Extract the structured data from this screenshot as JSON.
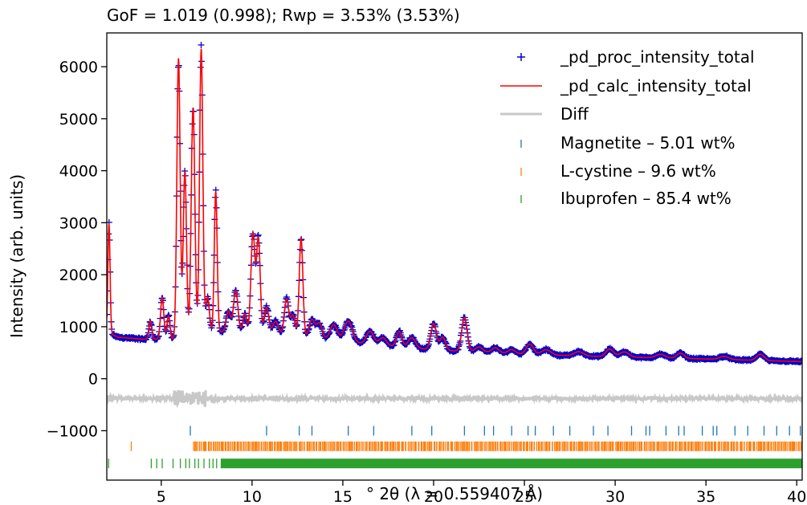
{
  "chart_data": {
    "type": "line",
    "title": "GoF = 1.019 (0.998); Rwp = 3.53% (3.53%)",
    "xlabel": "° 2θ (λ = 0.559407 Å)",
    "ylabel": "Intensity (arb. units)",
    "xlim": [
      2.0,
      40.3
    ],
    "ylim": [
      -1950,
      6650
    ],
    "xticks": [
      5,
      10,
      15,
      20,
      25,
      30,
      35,
      40
    ],
    "yticks": [
      -1000,
      0,
      1000,
      2000,
      3000,
      4000,
      5000,
      6000
    ],
    "ytick_labels": [
      "−1000",
      "0",
      "1000",
      "2000",
      "3000",
      "4000",
      "5000",
      "6000"
    ],
    "grid": false,
    "legend_position": "top-right",
    "colors": {
      "observed": "#0000cc",
      "calculated": "#ff0000",
      "difference": "#c8c8c8",
      "magnetite": "#1f77b4",
      "lcystine": "#ff7f0e",
      "ibuprofen": "#2ca02c"
    },
    "series": [
      {
        "name": "_pd_proc_intensity_total",
        "kind": "observed",
        "background": [
          [
            2.0,
            900
          ],
          [
            2.6,
            800
          ],
          [
            4.0,
            760
          ],
          [
            6.0,
            760
          ],
          [
            8.0,
            900
          ],
          [
            10.0,
            900
          ],
          [
            12.0,
            830
          ],
          [
            14.0,
            760
          ],
          [
            16.0,
            680
          ],
          [
            18.0,
            610
          ],
          [
            20.0,
            560
          ],
          [
            22.0,
            520
          ],
          [
            25.0,
            470
          ],
          [
            30.0,
            420
          ],
          [
            35.0,
            380
          ],
          [
            40.2,
            330
          ]
        ],
        "peaks": [
          [
            2.12,
            2100,
            0.06
          ],
          [
            4.4,
            350,
            0.08
          ],
          [
            5.05,
            800,
            0.09
          ],
          [
            5.4,
            450,
            0.08
          ],
          [
            5.95,
            5400,
            0.09
          ],
          [
            6.3,
            3200,
            0.09
          ],
          [
            6.75,
            4400,
            0.1
          ],
          [
            7.2,
            5500,
            0.09
          ],
          [
            7.55,
            700,
            0.1
          ],
          [
            8.0,
            2700,
            0.08
          ],
          [
            8.7,
            400,
            0.12
          ],
          [
            9.1,
            800,
            0.12
          ],
          [
            9.6,
            350,
            0.1
          ],
          [
            10.05,
            1900,
            0.11
          ],
          [
            10.35,
            1800,
            0.1
          ],
          [
            10.8,
            500,
            0.12
          ],
          [
            11.3,
            250,
            0.15
          ],
          [
            11.9,
            700,
            0.12
          ],
          [
            12.25,
            400,
            0.12
          ],
          [
            12.7,
            1900,
            0.1
          ],
          [
            13.3,
            350,
            0.15
          ],
          [
            13.7,
            300,
            0.15
          ],
          [
            14.5,
            300,
            0.2
          ],
          [
            15.3,
            400,
            0.22
          ],
          [
            16.5,
            250,
            0.2
          ],
          [
            17.2,
            150,
            0.2
          ],
          [
            18.1,
            300,
            0.15
          ],
          [
            18.8,
            200,
            0.2
          ],
          [
            20.0,
            500,
            0.15
          ],
          [
            20.5,
            250,
            0.15
          ],
          [
            21.7,
            650,
            0.15
          ],
          [
            22.5,
            100,
            0.2
          ],
          [
            23.4,
            100,
            0.2
          ],
          [
            24.3,
            80,
            0.2
          ],
          [
            25.3,
            200,
            0.2
          ],
          [
            26.2,
            100,
            0.25
          ],
          [
            28.0,
            80,
            0.25
          ],
          [
            29.7,
            150,
            0.2
          ],
          [
            30.5,
            100,
            0.25
          ],
          [
            32.5,
            70,
            0.25
          ],
          [
            33.6,
            100,
            0.2
          ],
          [
            36.0,
            60,
            0.25
          ],
          [
            38.0,
            120,
            0.2
          ]
        ]
      },
      {
        "name": "_pd_calc_intensity_total",
        "kind": "calculated"
      },
      {
        "name": "Diff",
        "kind": "difference",
        "offset": -380
      }
    ],
    "phases": [
      {
        "name": "Magnetite – 5.01 wt%",
        "row_y": -1000,
        "positions": [
          6.6,
          10.8,
          12.6,
          13.3,
          15.3,
          16.7,
          18.8,
          19.9,
          21.7,
          22.8,
          23.3,
          24.3,
          25.2,
          25.6,
          26.6,
          27.5,
          28.8,
          29.6,
          30.9,
          31.7,
          31.9,
          32.8,
          33.5,
          33.8,
          34.8,
          35.4,
          35.6,
          36.6,
          37.3,
          38.2,
          38.9,
          39.6,
          40.2
        ]
      },
      {
        "name": "L-cystine – 9.6 wt%",
        "row_y": -1300,
        "start": 6.75,
        "end": 40.3,
        "density": 14,
        "extra": [
          3.35
        ]
      },
      {
        "name": "Ibuprofen – 85.4 wt%",
        "row_y": -1630,
        "start": 8.3,
        "end": 40.3,
        "density": 35,
        "extra": [
          2.1,
          4.45,
          4.75,
          5.05,
          5.65,
          6.05,
          6.35,
          6.55,
          6.85,
          7.05,
          7.35,
          7.65,
          7.85,
          8.05
        ]
      }
    ]
  }
}
